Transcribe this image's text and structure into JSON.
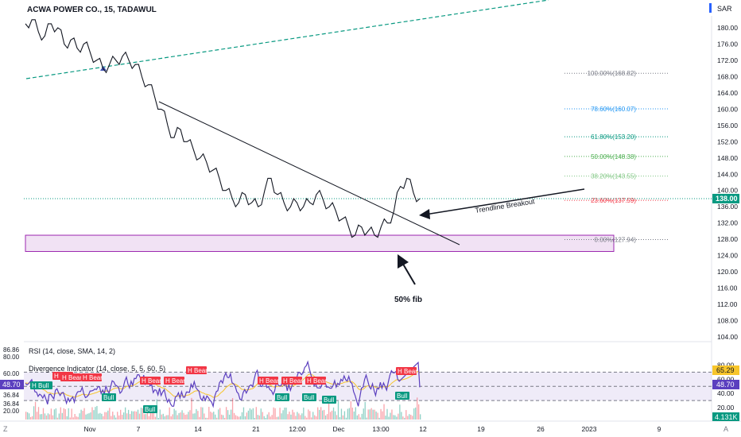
{
  "header": {
    "title": "ACWA POWER CO., 15, TADAWUL",
    "currency": "SAR"
  },
  "chart_data": {
    "type": "line",
    "title": "ACWA POWER CO., 15, TADAWUL",
    "price_axis": {
      "ticks": [
        180.0,
        176.0,
        172.0,
        168.0,
        164.0,
        160.0,
        156.0,
        152.0,
        148.0,
        144.0,
        140.0,
        136.0,
        132.0,
        128.0,
        124.0,
        120.0,
        116.0,
        112.0,
        108.0,
        104.0
      ],
      "ylim": [
        101.5,
        185.5
      ],
      "last_price": "138.00"
    },
    "time_axis": {
      "ticks": [
        "Nov",
        "7",
        "14",
        "21",
        "12:00",
        "Dec",
        "13:00",
        "12",
        "19",
        "26",
        "2023",
        "9"
      ]
    },
    "series": [
      {
        "color": "#131722",
        "values": [
          [
            0,
            181
          ],
          [
            2,
            182
          ],
          [
            4,
            179
          ],
          [
            6,
            178
          ],
          [
            8,
            181
          ],
          [
            10,
            180
          ],
          [
            12,
            176
          ],
          [
            14,
            177
          ],
          [
            16,
            175
          ],
          [
            18,
            176
          ],
          [
            20,
            174
          ],
          [
            22,
            172
          ],
          [
            24,
            170
          ],
          [
            26,
            171
          ],
          [
            28,
            172
          ],
          [
            30,
            173
          ],
          [
            32,
            172
          ],
          [
            34,
            171
          ],
          [
            36,
            168
          ],
          [
            38,
            166
          ],
          [
            40,
            163
          ],
          [
            42,
            160
          ],
          [
            44,
            156
          ],
          [
            46,
            153
          ],
          [
            48,
            155
          ],
          [
            50,
            152
          ],
          [
            52,
            150
          ],
          [
            54,
            148
          ],
          [
            56,
            147
          ],
          [
            58,
            145
          ],
          [
            60,
            143
          ],
          [
            62,
            140
          ],
          [
            64,
            138
          ],
          [
            66,
            137
          ],
          [
            68,
            139
          ],
          [
            70,
            137
          ],
          [
            72,
            136
          ],
          [
            74,
            140
          ],
          [
            76,
            143
          ],
          [
            78,
            139
          ],
          [
            80,
            137
          ],
          [
            82,
            136
          ],
          [
            84,
            137
          ],
          [
            86,
            136
          ],
          [
            88,
            137
          ],
          [
            90,
            139
          ],
          [
            92,
            138
          ],
          [
            94,
            136
          ],
          [
            96,
            135
          ],
          [
            98,
            133
          ],
          [
            100,
            131
          ],
          [
            102,
            129
          ],
          [
            104,
            131
          ],
          [
            106,
            130
          ],
          [
            108,
            129
          ],
          [
            110,
            131
          ],
          [
            112,
            132
          ],
          [
            114,
            135
          ],
          [
            116,
            141
          ],
          [
            118,
            143
          ],
          [
            120,
            139.5
          ],
          [
            122,
            138
          ]
        ]
      }
    ],
    "fib_levels": [
      {
        "label": "100.00%(168.82)",
        "value": 168.82,
        "color": "#787b86"
      },
      {
        "label": "78.60%(160.07)",
        "value": 160.07,
        "color": "#2196f3"
      },
      {
        "label": "61.80%(153.20)",
        "value": 153.2,
        "color": "#089981"
      },
      {
        "label": "50.00%(148.38)",
        "value": 148.38,
        "color": "#4caf50"
      },
      {
        "label": "38.20%(143.55)",
        "value": 143.55,
        "color": "#81c784"
      },
      {
        "label": "23.60%(137.59)",
        "value": 137.59,
        "color": "#f23645"
      },
      {
        "label": "0.00%(127.94)",
        "value": 127.94,
        "color": "#787b86"
      }
    ],
    "annotations": {
      "trendline_breakout": "Trendline Breakout",
      "fib_50": "50% fib"
    },
    "rsi": {
      "title": "RSI (14, close, SMA, 14, 2)",
      "axis_ticks": [
        80.0,
        60.0,
        40.0,
        20.0
      ],
      "current": "48.70",
      "ma_value": "65.29",
      "left_labels": [
        "86.86",
        "80.00",
        "60.00",
        "36.84",
        "36.84",
        "20.00"
      ],
      "band": [
        30,
        70
      ],
      "ylim": [
        10,
        95
      ]
    },
    "divergence": {
      "title": "Divergence Indicator (14, close, 5, 5, 60, 5)",
      "bear_label": "H Bear",
      "bull_label": "Bull",
      "hbull_label": "H Bull"
    },
    "volume_label": "4.131K",
    "colors": {
      "up": "#089981",
      "down": "#f23645",
      "rsi": "#7e57c2",
      "rsi_ma": "#f7c52b",
      "zone": "#9c27b0",
      "trend": "#089981"
    }
  }
}
